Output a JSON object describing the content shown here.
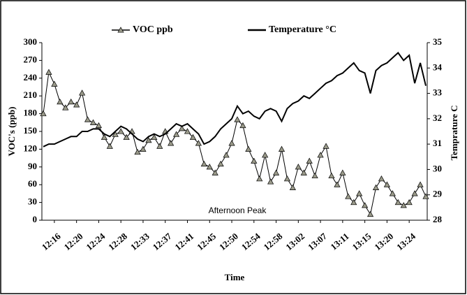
{
  "chart_data": {
    "type": "line",
    "x_label": "Time",
    "y_label": "VOC's (ppb)",
    "y2_label": "Temprature C",
    "annotation": "Afternoon Peak",
    "categories": [
      null,
      null,
      "12:16",
      null,
      null,
      null,
      "12:20",
      null,
      null,
      null,
      "12:24",
      null,
      null,
      null,
      "12:28",
      null,
      null,
      null,
      "12:33",
      null,
      null,
      null,
      "12:37",
      null,
      null,
      null,
      "12:41",
      null,
      null,
      null,
      "12:45",
      null,
      null,
      null,
      "12:50",
      null,
      null,
      null,
      "12:54",
      null,
      null,
      null,
      "12:58",
      null,
      null,
      null,
      "13:02",
      null,
      null,
      null,
      "13:07",
      null,
      null,
      null,
      "13:11",
      null,
      null,
      null,
      "13:15",
      null,
      null,
      null,
      "13:20",
      null,
      null,
      null,
      "13:24",
      null,
      null,
      null
    ],
    "series": [
      {
        "name": "VOC ppb",
        "color": "#000000",
        "marker": "triangle",
        "values": [
          180,
          250,
          230,
          200,
          190,
          200,
          195,
          215,
          170,
          165,
          160,
          140,
          125,
          145,
          150,
          140,
          150,
          115,
          120,
          135,
          140,
          125,
          150,
          130,
          145,
          155,
          150,
          140,
          130,
          95,
          90,
          80,
          95,
          110,
          130,
          170,
          160,
          120,
          100,
          70,
          110,
          65,
          80,
          120,
          70,
          55,
          90,
          80,
          100,
          75,
          110,
          125,
          75,
          60,
          80,
          40,
          30,
          45,
          25,
          10,
          55,
          70,
          60,
          45,
          30,
          25,
          30,
          45,
          60,
          40
        ]
      },
      {
        "name": "Temperature °C",
        "color": "#000000",
        "axis": "y2",
        "values": [
          30.9,
          31.0,
          31.0,
          31.1,
          31.2,
          31.3,
          31.3,
          31.5,
          31.5,
          31.6,
          31.6,
          31.4,
          31.3,
          31.5,
          31.7,
          31.6,
          31.4,
          31.2,
          31.1,
          31.3,
          31.4,
          31.3,
          31.4,
          31.6,
          31.8,
          31.7,
          31.8,
          31.6,
          31.4,
          31.0,
          31.1,
          31.3,
          31.6,
          31.8,
          32.0,
          32.5,
          32.2,
          32.3,
          32.1,
          32.0,
          32.3,
          32.4,
          32.3,
          31.9,
          32.4,
          32.6,
          32.7,
          32.9,
          32.8,
          33.0,
          33.2,
          33.4,
          33.5,
          33.7,
          33.8,
          34.0,
          34.2,
          33.9,
          33.8,
          33.0,
          33.9,
          34.1,
          34.2,
          34.4,
          34.6,
          34.3,
          34.5,
          33.4,
          34.2,
          33.3
        ]
      }
    ],
    "ylim": [
      0,
      300
    ],
    "yticks": [
      0,
      30,
      60,
      90,
      120,
      150,
      180,
      210,
      240,
      270,
      300
    ],
    "y2lim": [
      28,
      35
    ],
    "y2ticks": [
      28,
      29,
      30,
      31,
      32,
      33,
      34,
      35
    ]
  }
}
